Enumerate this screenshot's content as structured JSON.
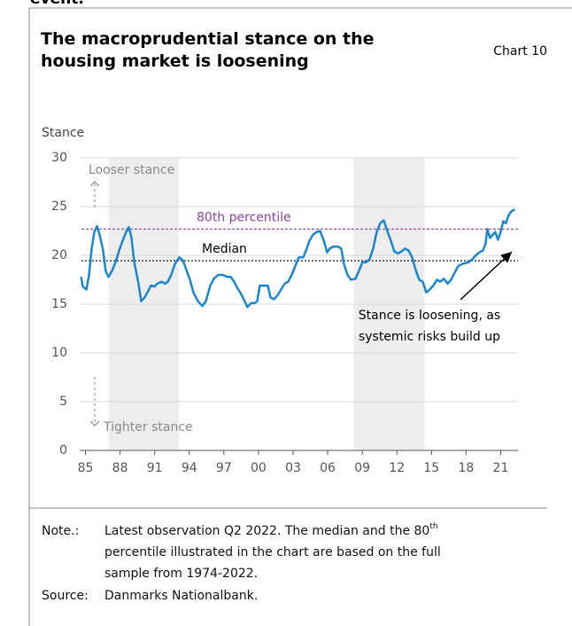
{
  "header": {
    "cut_text": "event."
  },
  "chart_data": {
    "type": "line",
    "chart_label": "Chart 10",
    "title": [
      "The macroprudential stance on the",
      "housing market is loosening"
    ],
    "y_label": "Stance",
    "xlim": [
      1984.5,
      2022.5
    ],
    "xticks": [
      {
        "value": 1985,
        "label": "85"
      },
      {
        "value": 1988,
        "label": "88"
      },
      {
        "value": 1991,
        "label": "91"
      },
      {
        "value": 1994,
        "label": "94"
      },
      {
        "value": 1997,
        "label": "97"
      },
      {
        "value": 2000,
        "label": "00"
      },
      {
        "value": 2003,
        "label": "03"
      },
      {
        "value": 2006,
        "label": "06"
      },
      {
        "value": 2009,
        "label": "09"
      },
      {
        "value": 2012,
        "label": "12"
      },
      {
        "value": 2015,
        "label": "15"
      },
      {
        "value": 2018,
        "label": "18"
      },
      {
        "value": 2021,
        "label": "21"
      }
    ],
    "ylim": [
      0,
      30
    ],
    "yticks": [
      0,
      5,
      10,
      15,
      20,
      25,
      30
    ],
    "grid": true,
    "shaded_periods": [
      [
        1987.0,
        1993.1
      ],
      [
        2008.25,
        2014.4
      ]
    ],
    "reference_lines": [
      {
        "name": "80th percentile",
        "value": 22.7,
        "color": "#8e3fa5"
      },
      {
        "name": "Median",
        "value": 19.45,
        "color": "#000000"
      }
    ],
    "direction_labels": {
      "up": "Looser stance",
      "down": "Tighter stance"
    },
    "annotation": [
      "Stance is loosening, as",
      "systemic risks build up"
    ],
    "series": [
      {
        "name": "Stance",
        "color": "#1b86d0",
        "x": [
          1984.62,
          1984.77,
          1985.08,
          1985.31,
          1985.54,
          1985.77,
          1986.0,
          1986.23,
          1986.53,
          1986.77,
          1987.0,
          1987.3,
          1987.61,
          1987.92,
          1988.22,
          1988.53,
          1988.76,
          1988.99,
          1989.22,
          1989.6,
          1989.83,
          1990.14,
          1990.37,
          1990.68,
          1990.99,
          1991.22,
          1991.6,
          1991.91,
          1992.14,
          1992.44,
          1992.75,
          1993.13,
          1993.44,
          1993.75,
          1994.06,
          1994.36,
          1994.75,
          1995.13,
          1995.44,
          1995.82,
          1996.13,
          1996.51,
          1996.9,
          1997.28,
          1997.59,
          1997.89,
          1998.2,
          1998.51,
          1998.81,
          1999.04,
          1999.35,
          1999.66,
          1999.89,
          2000.12,
          2000.5,
          2000.81,
          2001.04,
          2001.35,
          2001.65,
          2001.96,
          2002.27,
          2002.57,
          2002.88,
          2003.19,
          2003.5,
          2003.88,
          2004.19,
          2004.42,
          2004.72,
          2005.03,
          2005.34,
          2005.64,
          2005.95,
          2006.18,
          2006.49,
          2006.87,
          2007.18,
          2007.41,
          2007.72,
          2008.02,
          2008.41,
          2008.71,
          2009.02,
          2009.33,
          2009.64,
          2009.94,
          2010.25,
          2010.56,
          2010.86,
          2011.17,
          2011.48,
          2011.78,
          2012.09,
          2012.4,
          2012.71,
          2013.01,
          2013.32,
          2013.63,
          2013.93,
          2014.24,
          2014.55,
          2014.85,
          2015.16,
          2015.47,
          2015.77,
          2016.08,
          2016.39,
          2016.7,
          2017.0,
          2017.31,
          2017.62,
          2017.92,
          2018.23,
          2018.54,
          2018.84,
          2019.15,
          2019.46,
          2019.69,
          2019.84,
          2020.07,
          2020.3,
          2020.53,
          2020.76,
          2021.0,
          2021.22,
          2021.45,
          2021.68,
          2021.91,
          2022.22
        ],
        "values": [
          17.8,
          16.8,
          16.5,
          18,
          20.7,
          22.4,
          23,
          22.1,
          20.5,
          18.3,
          17.8,
          18.4,
          19.3,
          20.5,
          21.5,
          22.4,
          22.9,
          21.8,
          19.4,
          17.1,
          15.3,
          15.7,
          16.2,
          16.9,
          16.8,
          17.1,
          17.3,
          17.1,
          17.3,
          18,
          19.1,
          19.8,
          19.5,
          18.5,
          17.5,
          16.2,
          15.3,
          14.8,
          15.3,
          16.9,
          17.6,
          18,
          18,
          17.8,
          17.8,
          17.3,
          16.6,
          16,
          15.3,
          14.7,
          15.1,
          15.1,
          15.3,
          16.9,
          16.9,
          16.9,
          15.7,
          15.5,
          15.9,
          16.5,
          17.1,
          17.3,
          18,
          18.9,
          19.8,
          19.8,
          20.7,
          21.5,
          22.1,
          22.4,
          22.5,
          21.6,
          20.3,
          20.7,
          20.9,
          20.9,
          20.7,
          19.1,
          18,
          17.5,
          17.6,
          18.4,
          19.3,
          19.3,
          19.6,
          20.7,
          22.4,
          23.3,
          23.6,
          22.5,
          21.5,
          20.4,
          20.2,
          20.4,
          20.7,
          20.5,
          19.8,
          18.5,
          17.5,
          17.3,
          16.2,
          16.5,
          16.9,
          17.5,
          17.3,
          17.6,
          17.1,
          17.5,
          18.2,
          18.9,
          19.1,
          19.2,
          19.3,
          19.6,
          20,
          20.3,
          20.5,
          21.2,
          22.7,
          21.8,
          22.1,
          22.4,
          21.6,
          22.4,
          23.5,
          23.3,
          24.1,
          24.5,
          24.7
        ]
      }
    ]
  },
  "note": {
    "label": "Note.:",
    "lines": [
      "Latest observation Q2 2022. The median and the 80",
      "th",
      "percentile illustrated in the chart are based on the full",
      "sample from 1974-2022."
    ]
  },
  "source": {
    "label": "Source:",
    "text": "Danmarks Nationalbank."
  }
}
